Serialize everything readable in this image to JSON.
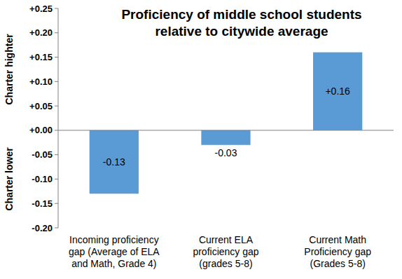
{
  "chart_data": {
    "type": "bar",
    "title": "Proficiency of middle school students\nrelative to citywide average",
    "annotations": [
      "Charter highter",
      "Charter lower"
    ],
    "categories": [
      "Incoming proficiency\ngap (Average of ELA\nand Math, Grade 4)",
      "Current ELA\nproficiency gap\n(grades 5-8)",
      "Current Math\nProficiency gap\n(Grades 5-8)"
    ],
    "values": [
      -0.13,
      -0.03,
      0.16
    ],
    "value_labels": [
      "-0.13",
      "-0.03",
      "+0.16"
    ],
    "data_labels": true,
    "color": "#5b9bd5",
    "ylim": [
      -0.2,
      0.25
    ],
    "yticks": [
      {
        "value": -0.2,
        "label": "-0.20"
      },
      {
        "value": -0.15,
        "label": "-0.15"
      },
      {
        "value": -0.1,
        "label": "-0.10"
      },
      {
        "value": -0.05,
        "label": "-0.05"
      },
      {
        "value": 0,
        "label": "+0.00"
      },
      {
        "value": 0.05,
        "label": "+0.05"
      },
      {
        "value": 0.1,
        "label": "+0.10"
      },
      {
        "value": 0.15,
        "label": "+0.15"
      },
      {
        "value": 0.2,
        "label": "+0.20"
      },
      {
        "value": 0.25,
        "label": "+0.25"
      }
    ],
    "grid": false
  }
}
